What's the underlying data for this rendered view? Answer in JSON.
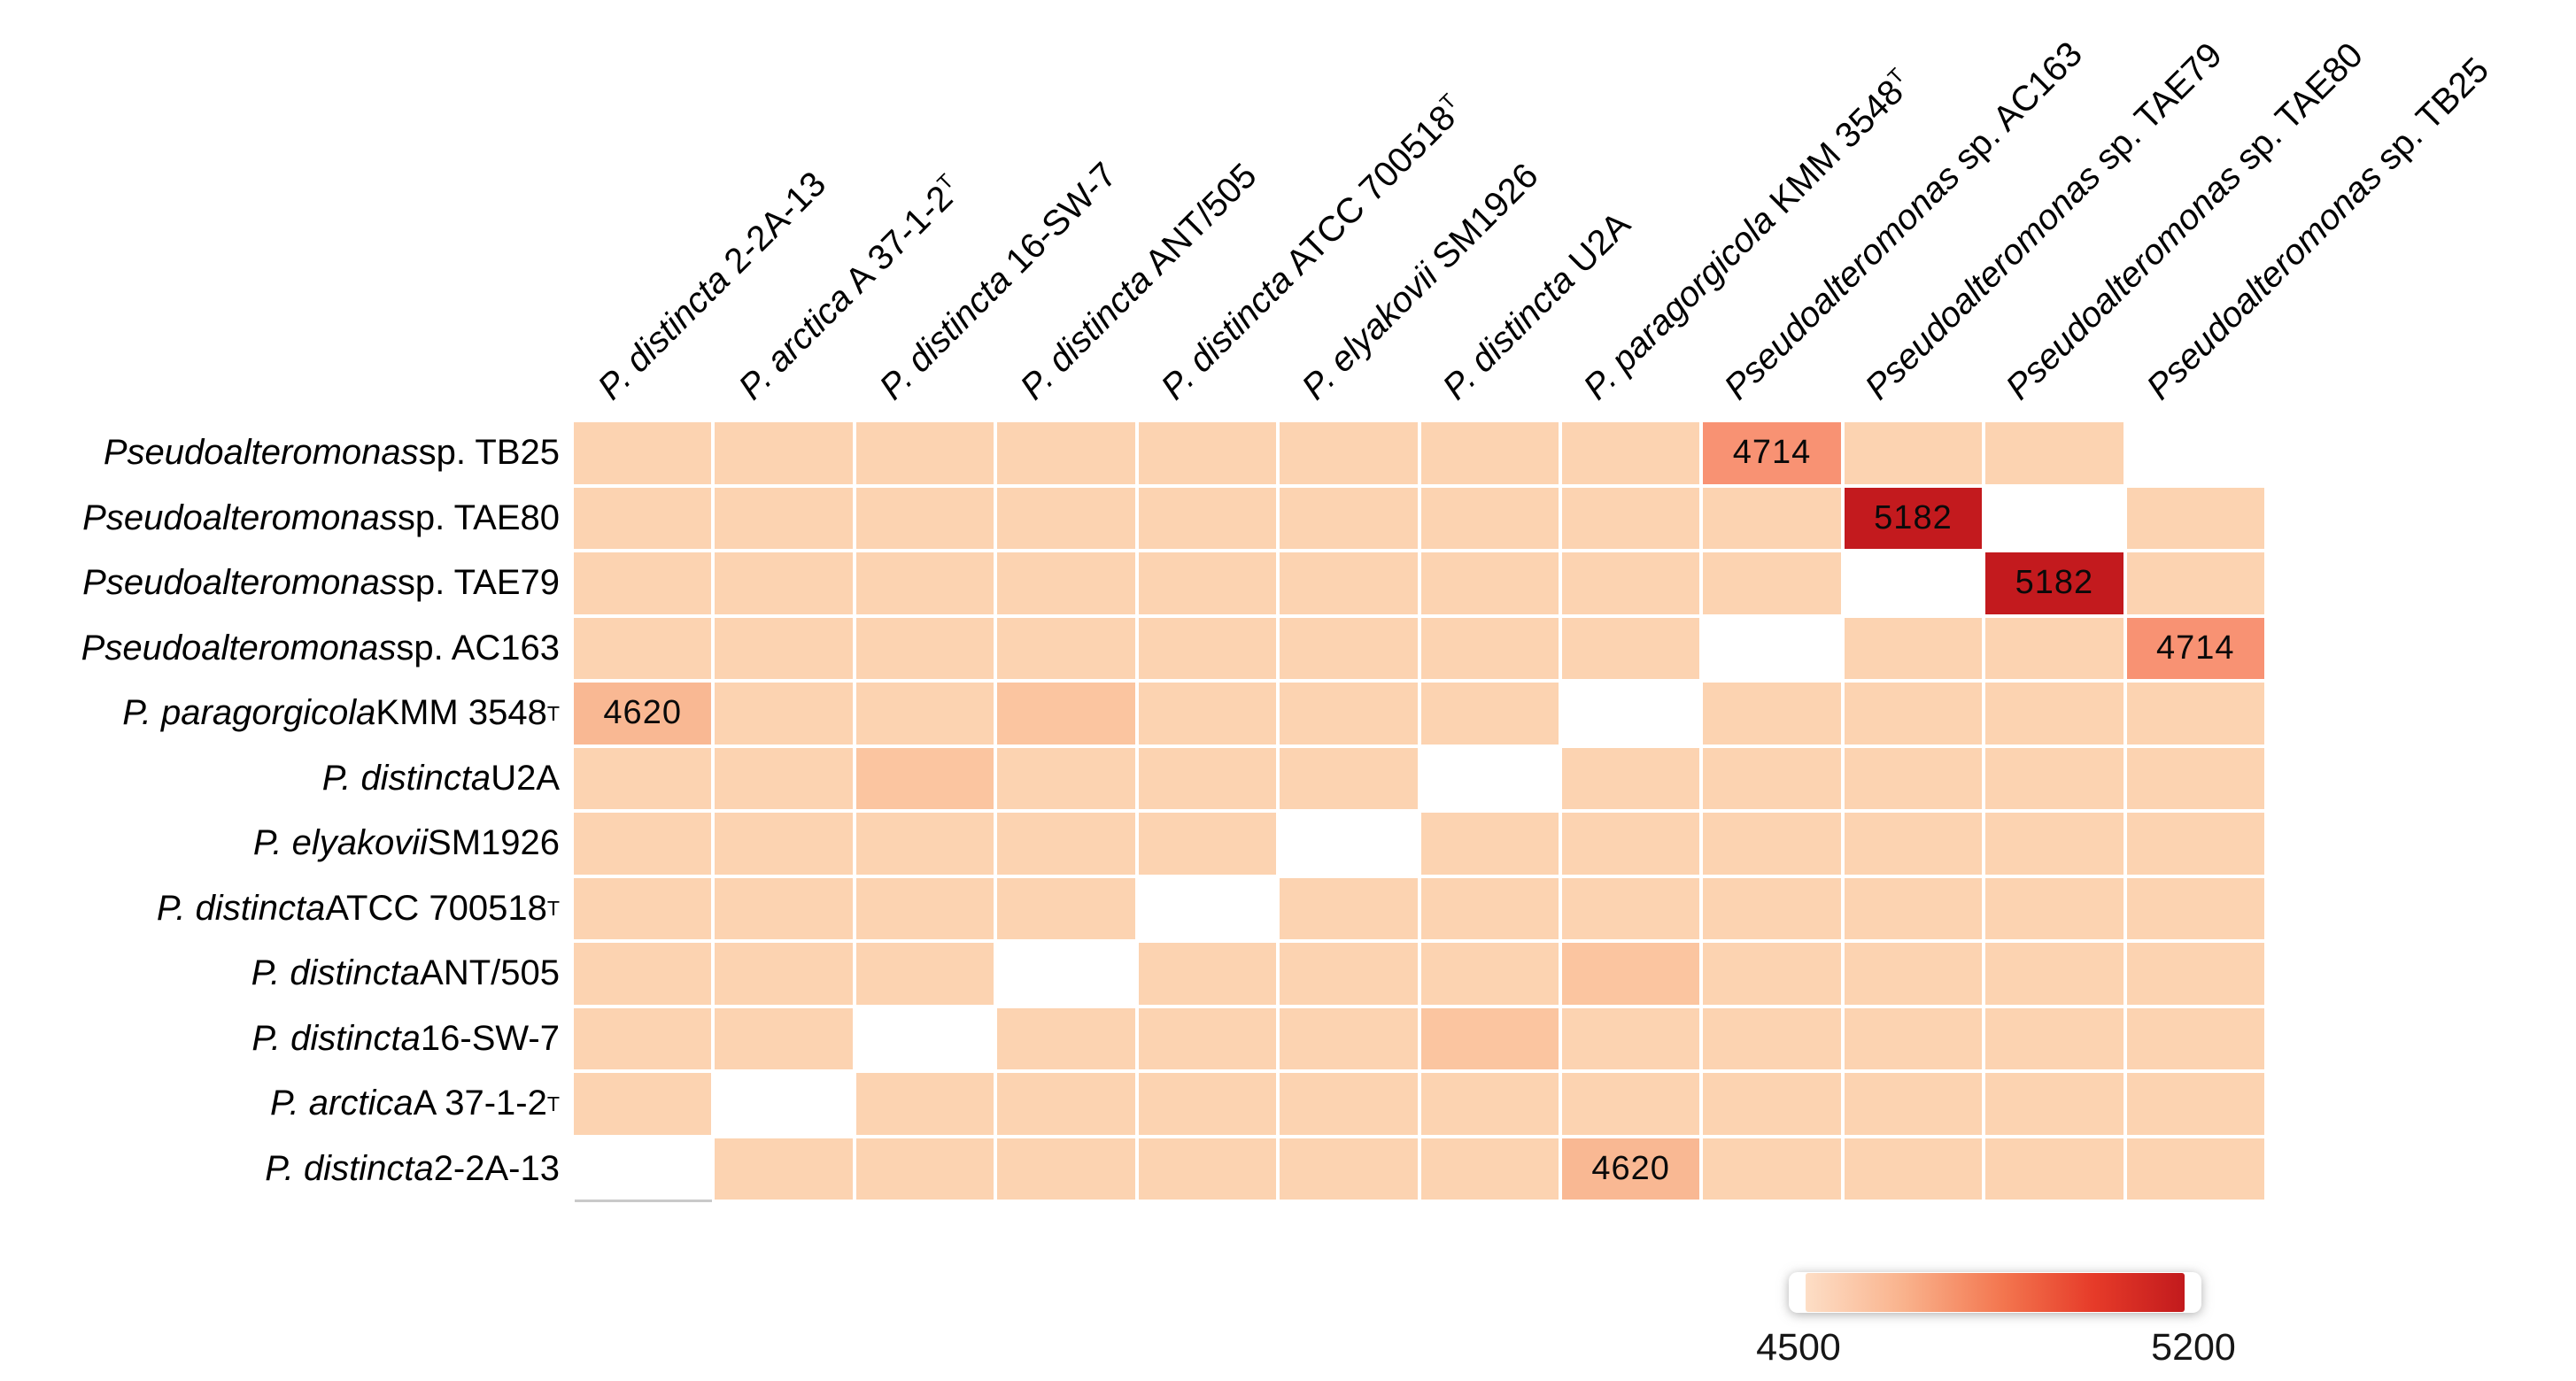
{
  "chart_data": {
    "type": "heatmap",
    "title": "",
    "description": "Pairwise genome comparison heatmap of Pseudoalteromonas strains",
    "grid_size": {
      "rows": 12,
      "cols": 12
    },
    "columns": [
      {
        "italic": "P. distincta",
        "roman": " 2-2A-13"
      },
      {
        "italic": "P. arctica",
        "roman": " A 37-1-2",
        "sup": "T"
      },
      {
        "italic": "P. distincta",
        "roman": " 16-SW-7"
      },
      {
        "italic": "P. distincta",
        "roman": " ANT/505"
      },
      {
        "italic": "P. distincta",
        "roman": " ATCC 700518",
        "sup": "T"
      },
      {
        "italic": "P. elyakovii",
        "roman": " SM1926"
      },
      {
        "italic": "P. distincta",
        "roman": " U2A"
      },
      {
        "italic": "P. paragorgicola",
        "roman": " KMM 3548",
        "sup": "T"
      },
      {
        "italic": "Pseudoalteromonas",
        "roman": " sp. AC163"
      },
      {
        "italic": "Pseudoalteromonas",
        "roman": " sp. TAE79"
      },
      {
        "italic": "Pseudoalteromonas",
        "roman": " sp. TAE80"
      },
      {
        "italic": "Pseudoalteromonas",
        "roman": " sp. TB25"
      }
    ],
    "rows": [
      {
        "italic": "Pseudoalteromonas",
        "roman": " sp. TB25"
      },
      {
        "italic": "Pseudoalteromonas",
        "roman": " sp. TAE80"
      },
      {
        "italic": "Pseudoalteromonas",
        "roman": " sp. TAE79"
      },
      {
        "italic": "Pseudoalteromonas",
        "roman": " sp. AC163"
      },
      {
        "italic": "P. paragorgicola",
        "roman": " KMM 3548",
        "sup": "T"
      },
      {
        "italic": "P. distincta",
        "roman": " U2A"
      },
      {
        "italic": "P. elyakovii",
        "roman": " SM1926"
      },
      {
        "italic": "P. distincta",
        "roman": " ATCC 700518",
        "sup": "T"
      },
      {
        "italic": "P. distincta",
        "roman": " ANT/505"
      },
      {
        "italic": "P. distincta",
        "roman": " 16-SW-7"
      },
      {
        "italic": "P. arctica",
        "roman": " A 37-1-2",
        "sup": "T"
      },
      {
        "italic": "P. distincta",
        "roman": " 2-2A-13"
      }
    ],
    "matrix": [
      [
        4550,
        4550,
        4550,
        4550,
        4550,
        4550,
        4550,
        4550,
        4714,
        4550,
        4550,
        null
      ],
      [
        4550,
        4550,
        4550,
        4550,
        4550,
        4550,
        4550,
        4550,
        4550,
        5182,
        null,
        4550
      ],
      [
        4550,
        4550,
        4550,
        4550,
        4550,
        4550,
        4550,
        4550,
        4550,
        null,
        5182,
        4550
      ],
      [
        4550,
        4550,
        4550,
        4550,
        4550,
        4550,
        4550,
        4550,
        null,
        4550,
        4550,
        4714
      ],
      [
        4620,
        4550,
        4550,
        4600,
        4550,
        4550,
        4550,
        null,
        4550,
        4550,
        4550,
        4550
      ],
      [
        4550,
        4550,
        4600,
        4550,
        4550,
        4550,
        null,
        4550,
        4550,
        4550,
        4550,
        4550
      ],
      [
        4550,
        4550,
        4550,
        4550,
        4550,
        null,
        4550,
        4550,
        4550,
        4550,
        4550,
        4550
      ],
      [
        4550,
        4550,
        4550,
        4550,
        null,
        4550,
        4550,
        4550,
        4550,
        4550,
        4550,
        4550
      ],
      [
        4550,
        4550,
        4550,
        null,
        4550,
        4550,
        4550,
        4600,
        4550,
        4550,
        4550,
        4550
      ],
      [
        4550,
        4550,
        null,
        4550,
        4550,
        4550,
        4600,
        4550,
        4550,
        4550,
        4550,
        4550
      ],
      [
        4550,
        null,
        4550,
        4550,
        4550,
        4550,
        4550,
        4550,
        4550,
        4550,
        4550,
        4550
      ],
      [
        null,
        4550,
        4550,
        4550,
        4550,
        4550,
        4550,
        4620,
        4550,
        4550,
        4550,
        4550
      ]
    ],
    "annotations": [
      {
        "row": 0,
        "col": 8,
        "text": "4714"
      },
      {
        "row": 1,
        "col": 9,
        "text": "5182"
      },
      {
        "row": 2,
        "col": 10,
        "text": "5182"
      },
      {
        "row": 3,
        "col": 11,
        "text": "4714"
      },
      {
        "row": 4,
        "col": 0,
        "text": "4620"
      },
      {
        "row": 11,
        "col": 7,
        "text": "4620"
      }
    ],
    "value_range": [
      4500,
      5200
    ],
    "colorbar": {
      "min_label": "4500",
      "max_label": "5200",
      "position": "bottom-right"
    },
    "color_stops": [
      {
        "v": 4500,
        "c": "#FDDEC6"
      },
      {
        "v": 4550,
        "c": "#FCD3B1"
      },
      {
        "v": 4600,
        "c": "#FBC5A0"
      },
      {
        "v": 4620,
        "c": "#F9B893"
      },
      {
        "v": 4714,
        "c": "#F89273"
      },
      {
        "v": 4950,
        "c": "#EF4433"
      },
      {
        "v": 5182,
        "c": "#C31A1E"
      },
      {
        "v": 5200,
        "c": "#C0171C"
      }
    ],
    "diagonal_color": "#FFFFFF",
    "gridline_color": "#FFFFFF"
  }
}
